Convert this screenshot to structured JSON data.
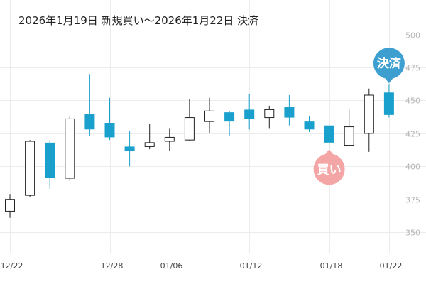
{
  "title": "2026年1月19日 新規買い〜2026年1月22日 決済",
  "chart_data": {
    "type": "candlestick",
    "title": "2026年1月19日 新規買い〜2026年1月22日 決済",
    "ylim": [
      335,
      510
    ],
    "y_ticks": [
      350,
      375,
      400,
      425,
      450,
      475,
      500
    ],
    "y_axis_position": "right",
    "grid": true,
    "x_ticks": [
      {
        "index": 0,
        "label": "12/22"
      },
      {
        "index": 5,
        "label": "12/28"
      },
      {
        "index": 8,
        "label": "01/06"
      },
      {
        "index": 12,
        "label": "01/12"
      },
      {
        "index": 16,
        "label": "01/18"
      },
      {
        "index": 19,
        "label": "01/22"
      }
    ],
    "colors": {
      "up": "#ffffff",
      "up_border": "#222222",
      "down": "#1aa0cc",
      "grid": "#ececec",
      "buy": "#f4a5a5",
      "sell": "#3d9fcf"
    },
    "candles": [
      {
        "open": 366,
        "high": 379,
        "low": 361,
        "close": 375
      },
      {
        "open": 378,
        "high": 420,
        "low": 377,
        "close": 419
      },
      {
        "open": 418,
        "high": 420,
        "low": 383,
        "close": 391
      },
      {
        "open": 391,
        "high": 438,
        "low": 389,
        "close": 436
      },
      {
        "open": 440,
        "high": 470,
        "low": 423,
        "close": 428
      },
      {
        "open": 433,
        "high": 452,
        "low": 420,
        "close": 422
      },
      {
        "open": 415,
        "high": 427,
        "low": 400,
        "close": 412
      },
      {
        "open": 415,
        "high": 432,
        "low": 413,
        "close": 418
      },
      {
        "open": 419,
        "high": 429,
        "low": 412,
        "close": 422
      },
      {
        "open": 420,
        "high": 451,
        "low": 419,
        "close": 437
      },
      {
        "open": 434,
        "high": 452,
        "low": 425,
        "close": 442
      },
      {
        "open": 441,
        "high": 442,
        "low": 423,
        "close": 434
      },
      {
        "open": 443,
        "high": 455,
        "low": 428,
        "close": 436
      },
      {
        "open": 437,
        "high": 446,
        "low": 429,
        "close": 443
      },
      {
        "open": 445,
        "high": 454,
        "low": 431,
        "close": 437
      },
      {
        "open": 434,
        "high": 438,
        "low": 426,
        "close": 428
      },
      {
        "open": 431,
        "high": 431,
        "low": 414,
        "close": 418
      },
      {
        "open": 416,
        "high": 443,
        "low": 416,
        "close": 430
      },
      {
        "open": 425,
        "high": 459,
        "low": 411,
        "close": 454
      },
      {
        "open": 456,
        "high": 462,
        "low": 437,
        "close": 439
      }
    ],
    "markers": [
      {
        "index": 16,
        "type": "buy",
        "label": "買い",
        "position": "below"
      },
      {
        "index": 19,
        "type": "sell",
        "label": "決済",
        "position": "above"
      }
    ]
  }
}
